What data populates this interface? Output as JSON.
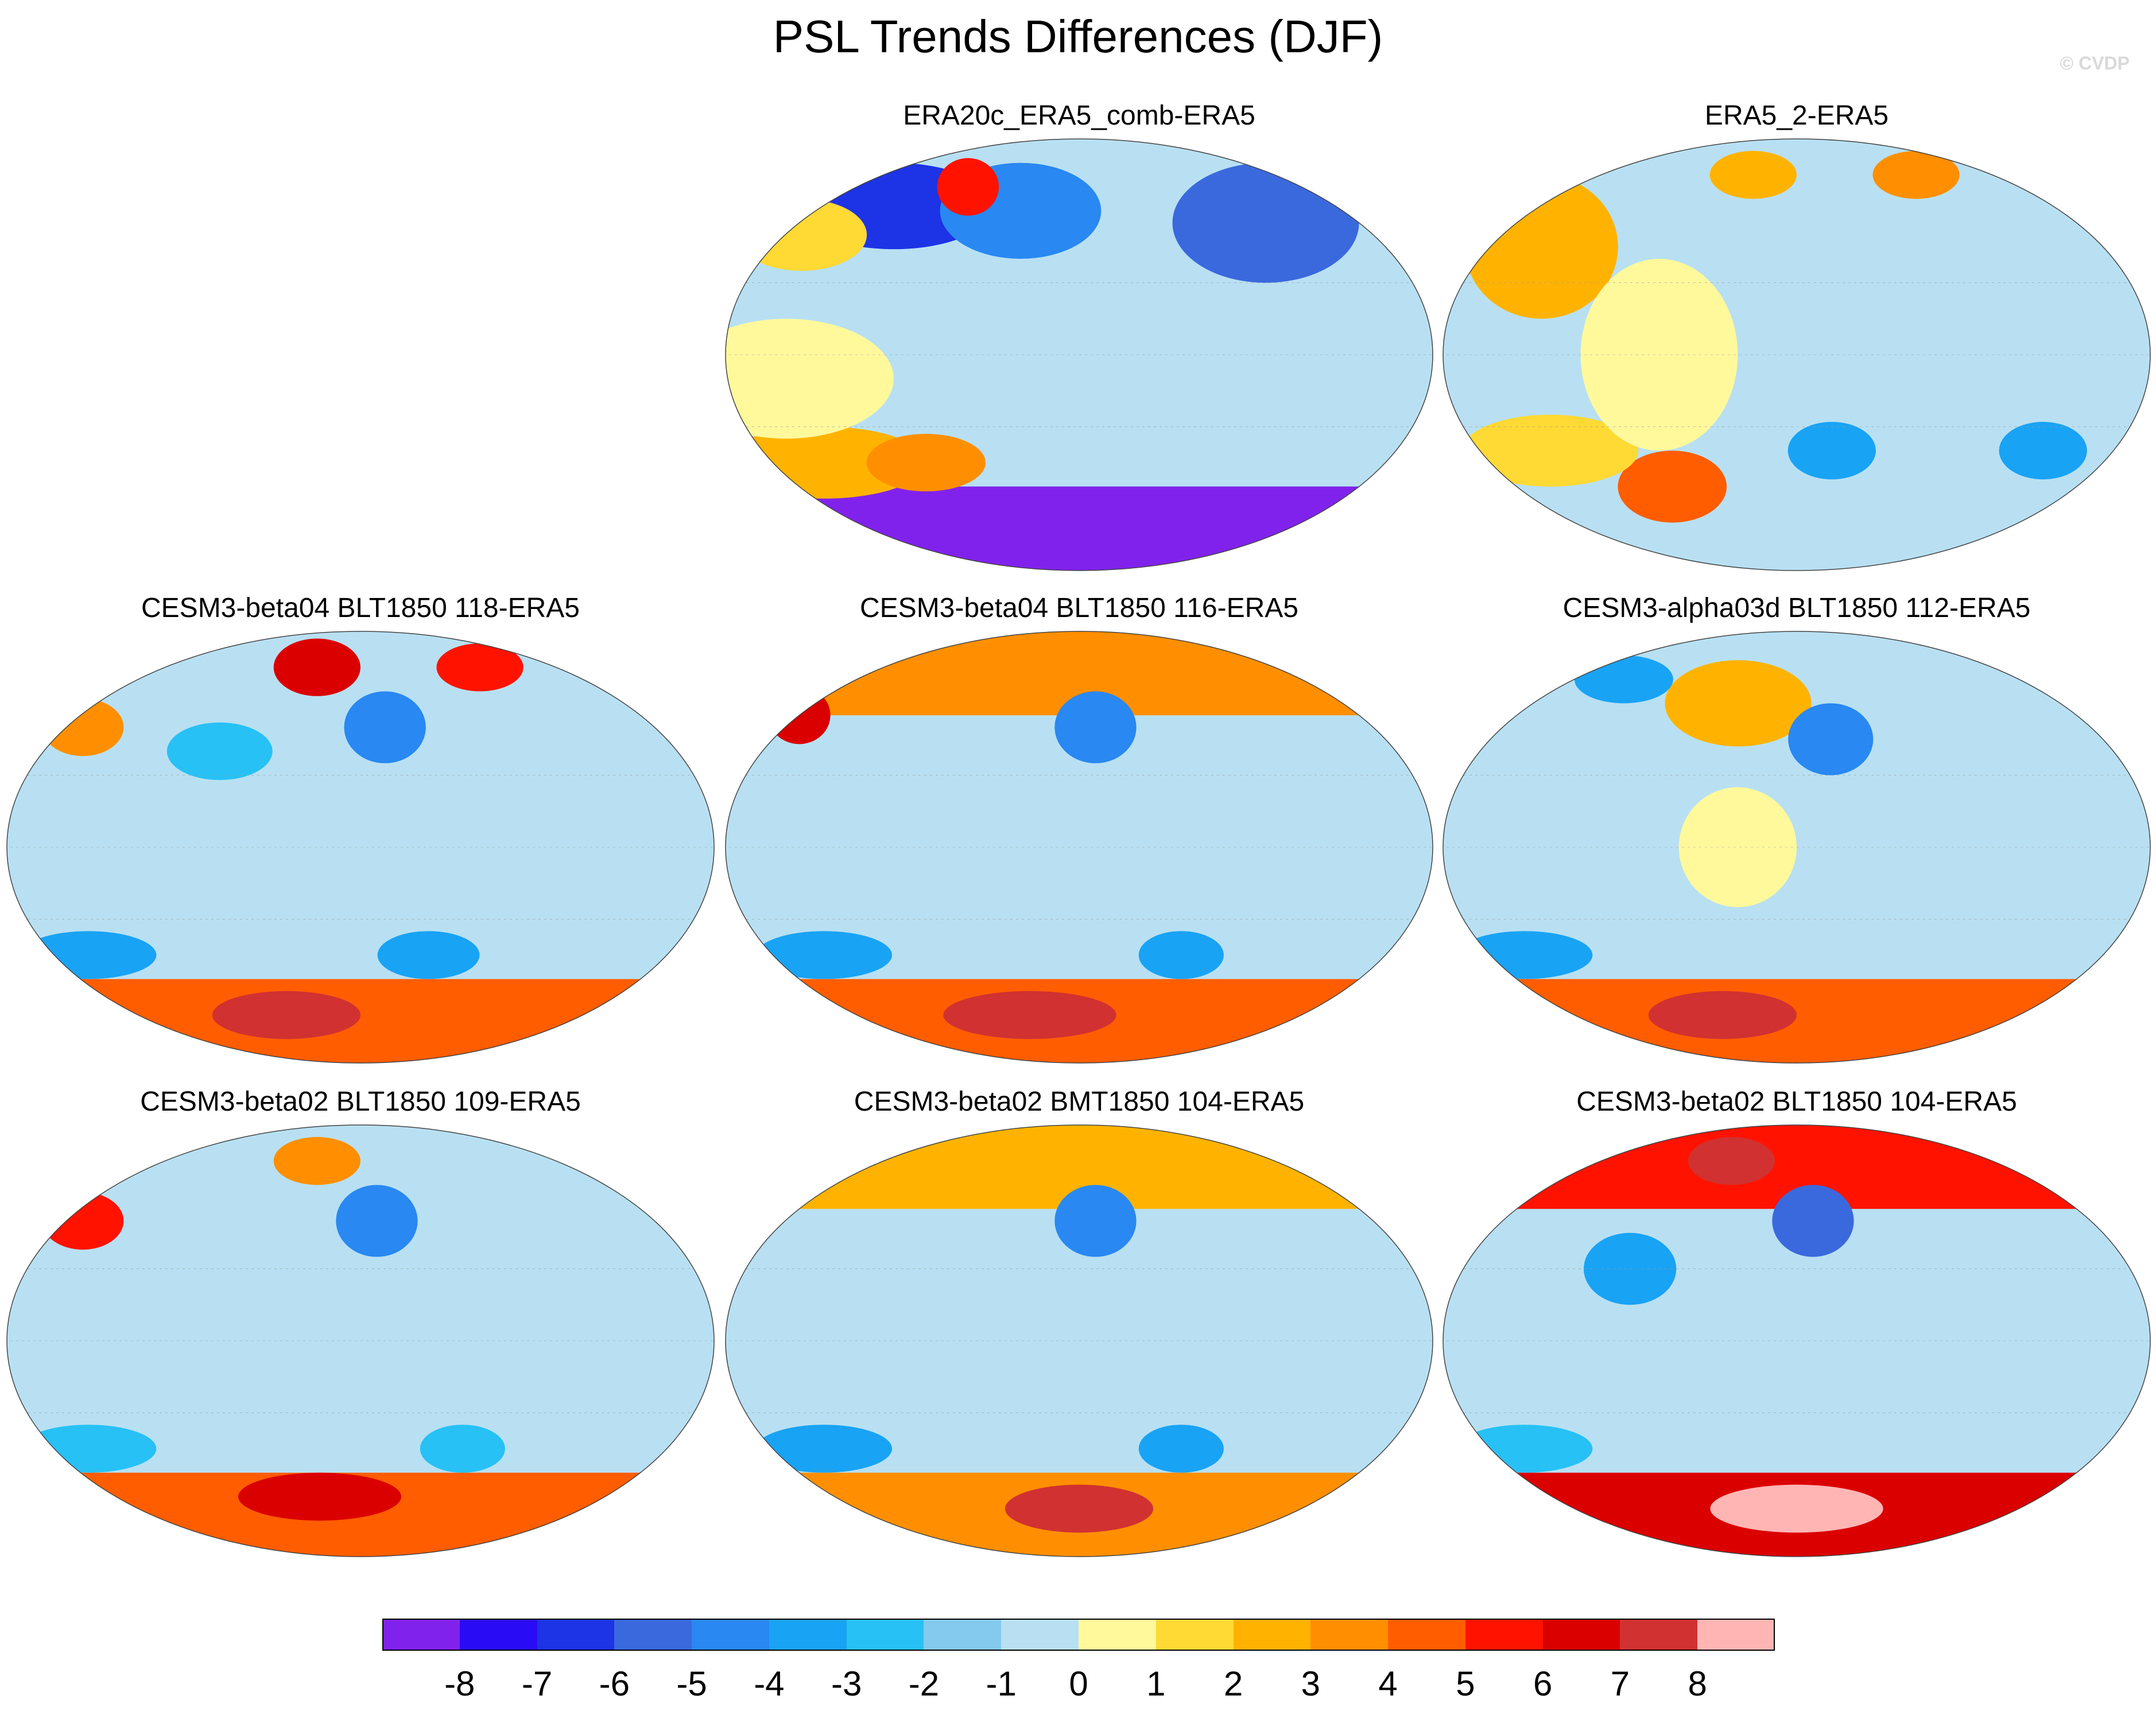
{
  "title": "PSL Trends Differences (DJF)",
  "watermark": "© CVDP",
  "colors": {
    "bins": [
      "#8122ec",
      "#2a0bf5",
      "#1d33e6",
      "#3a69de",
      "#2988f1",
      "#19a3f4",
      "#27c1f5",
      "#84c9ee",
      "#b8e0f2",
      "#fff99c",
      "#ffd934",
      "#ffb300",
      "#ff8f00",
      "#ff5d00",
      "#ff1300",
      "#db0000",
      "#d13131",
      "#ffb5b4"
    ]
  },
  "chart_data": [
    {
      "type": "contour-map",
      "projection": "Robinson",
      "title": "ERA20c_ERA5_comb-ERA5",
      "features": [
        {
          "kind": "lon0",
          "value": -0.5
        },
        {
          "kind": "band",
          "south": true,
          "colorIndex": 1
        },
        {
          "kind": "band",
          "south": true,
          "colorIndex": 0
        },
        {
          "kind": "blob",
          "lon": -130,
          "lat": 62,
          "rlon": 70,
          "rlat": 18,
          "colorIndex": 2
        },
        {
          "kind": "blob",
          "lon": 120,
          "lat": 55,
          "rlon": 60,
          "rlat": 25,
          "colorIndex": 3
        },
        {
          "kind": "blob",
          "lon": -40,
          "lat": 60,
          "rlon": 55,
          "rlat": 20,
          "colorIndex": 4
        },
        {
          "kind": "blob",
          "lon": -170,
          "lat": 50,
          "rlon": 40,
          "rlat": 15,
          "colorIndex": 10
        },
        {
          "kind": "blob",
          "lon": -90,
          "lat": 70,
          "rlon": 25,
          "rlat": 12,
          "colorIndex": 14
        },
        {
          "kind": "blob",
          "lon": -150,
          "lat": -45,
          "rlon": 60,
          "rlat": 15,
          "colorIndex": 11
        },
        {
          "kind": "blob",
          "lon": -90,
          "lat": -45,
          "rlon": 35,
          "rlat": 12,
          "colorIndex": 12
        },
        {
          "kind": "blob",
          "lon": -150,
          "lat": -10,
          "rlon": 55,
          "rlat": 25,
          "colorIndex": 9
        }
      ]
    },
    {
      "type": "contour-map",
      "projection": "Robinson",
      "title": "ERA5_2-ERA5",
      "features": [
        {
          "kind": "blob",
          "lon": -150,
          "lat": 45,
          "rlon": 30,
          "rlat": 20,
          "colorIndex": 14
        },
        {
          "kind": "blob",
          "lon": -150,
          "lat": 45,
          "rlon": 45,
          "rlat": 30,
          "colorIndex": 11
        },
        {
          "kind": "blob",
          "lon": 110,
          "lat": 75,
          "rlon": 40,
          "rlat": 10,
          "colorIndex": 12
        },
        {
          "kind": "blob",
          "lon": -40,
          "lat": 75,
          "rlon": 40,
          "rlat": 10,
          "colorIndex": 11
        },
        {
          "kind": "blob",
          "lon": -80,
          "lat": -55,
          "rlon": 35,
          "rlat": 15,
          "colorIndex": 13
        },
        {
          "kind": "blob",
          "lon": -140,
          "lat": -40,
          "rlon": 50,
          "rlat": 15,
          "colorIndex": 10
        },
        {
          "kind": "blob",
          "lon": -70,
          "lat": 0,
          "rlon": 40,
          "rlat": 40,
          "colorIndex": 9
        },
        {
          "kind": "blob",
          "lon": 140,
          "lat": -40,
          "rlon": 25,
          "rlat": 12,
          "colorIndex": 5
        },
        {
          "kind": "blob",
          "lon": 20,
          "lat": -40,
          "rlon": 25,
          "rlat": 12,
          "colorIndex": 5
        }
      ]
    },
    {
      "type": "contour-map",
      "projection": "Robinson",
      "title": "CESM3-beta04 BLT1850 118-ERA5",
      "features": [
        {
          "kind": "band",
          "south": true,
          "colorIndex": 13
        },
        {
          "kind": "blob",
          "lon": -60,
          "lat": -70,
          "rlon": 60,
          "rlat": 10,
          "colorIndex": 16
        },
        {
          "kind": "blob",
          "lon": -40,
          "lat": 75,
          "rlon": 40,
          "rlat": 12,
          "colorIndex": 15
        },
        {
          "kind": "blob",
          "lon": 110,
          "lat": 75,
          "rlon": 40,
          "rlat": 10,
          "colorIndex": 14
        },
        {
          "kind": "blob",
          "lon": -170,
          "lat": 50,
          "rlon": 25,
          "rlat": 12,
          "colorIndex": 12
        },
        {
          "kind": "blob",
          "lon": 15,
          "lat": 50,
          "rlon": 25,
          "rlat": 15,
          "colorIndex": 4
        },
        {
          "kind": "blob",
          "lon": -80,
          "lat": 40,
          "rlon": 30,
          "rlat": 12,
          "colorIndex": 6
        },
        {
          "kind": "blob",
          "lon": -160,
          "lat": -45,
          "rlon": 40,
          "rlat": 10,
          "colorIndex": 5
        },
        {
          "kind": "blob",
          "lon": 40,
          "lat": -45,
          "rlon": 30,
          "rlat": 10,
          "colorIndex": 5
        }
      ]
    },
    {
      "type": "contour-map",
      "projection": "Robinson",
      "title": "CESM3-beta04 BLT1850 116-ERA5",
      "features": [
        {
          "kind": "band",
          "south": true,
          "colorIndex": 13
        },
        {
          "kind": "blob",
          "lon": -40,
          "lat": -70,
          "rlon": 70,
          "rlat": 10,
          "colorIndex": 16
        },
        {
          "kind": "band",
          "north": true,
          "colorIndex": 12
        },
        {
          "kind": "blob",
          "lon": -180,
          "lat": 55,
          "rlon": 20,
          "rlat": 12,
          "colorIndex": 15
        },
        {
          "kind": "blob",
          "lon": 10,
          "lat": 50,
          "rlon": 25,
          "rlat": 15,
          "colorIndex": 4
        },
        {
          "kind": "blob",
          "lon": -150,
          "lat": -45,
          "rlon": 40,
          "rlat": 10,
          "colorIndex": 5
        },
        {
          "kind": "blob",
          "lon": 60,
          "lat": -45,
          "rlon": 25,
          "rlat": 10,
          "colorIndex": 5
        }
      ]
    },
    {
      "type": "contour-map",
      "projection": "Robinson",
      "title": "CESM3-alpha03d BLT1850 112-ERA5",
      "features": [
        {
          "kind": "band",
          "south": true,
          "colorIndex": 13
        },
        {
          "kind": "blob",
          "lon": -60,
          "lat": -70,
          "rlon": 60,
          "rlat": 10,
          "colorIndex": 16
        },
        {
          "kind": "blob",
          "lon": -40,
          "lat": 60,
          "rlon": 50,
          "rlat": 18,
          "colorIndex": 11
        },
        {
          "kind": "blob",
          "lon": -140,
          "lat": 70,
          "rlon": 40,
          "rlat": 10,
          "colorIndex": 5
        },
        {
          "kind": "blob",
          "lon": 20,
          "lat": 45,
          "rlon": 25,
          "rlat": 15,
          "colorIndex": 4
        },
        {
          "kind": "blob",
          "lon": -160,
          "lat": -45,
          "rlon": 40,
          "rlat": 10,
          "colorIndex": 5
        },
        {
          "kind": "blob",
          "lon": -30,
          "lat": 0,
          "rlon": 30,
          "rlat": 25,
          "colorIndex": 9
        }
      ]
    },
    {
      "type": "contour-map",
      "projection": "Robinson",
      "title": "CESM3-beta02 BLT1850 109-ERA5",
      "features": [
        {
          "kind": "band",
          "south": true,
          "colorIndex": 13
        },
        {
          "kind": "blob",
          "lon": -30,
          "lat": -65,
          "rlon": 60,
          "rlat": 10,
          "colorIndex": 15
        },
        {
          "kind": "blob",
          "lon": -170,
          "lat": 50,
          "rlon": 25,
          "rlat": 12,
          "colorIndex": 14
        },
        {
          "kind": "blob",
          "lon": -40,
          "lat": 75,
          "rlon": 40,
          "rlat": 10,
          "colorIndex": 12
        },
        {
          "kind": "blob",
          "lon": 10,
          "lat": 50,
          "rlon": 25,
          "rlat": 15,
          "colorIndex": 4
        },
        {
          "kind": "blob",
          "lon": -160,
          "lat": -45,
          "rlon": 40,
          "rlat": 10,
          "colorIndex": 6
        },
        {
          "kind": "blob",
          "lon": 60,
          "lat": -45,
          "rlon": 25,
          "rlat": 10,
          "colorIndex": 6
        }
      ]
    },
    {
      "type": "contour-map",
      "projection": "Robinson",
      "title": "CESM3-beta02 BMT1850 104-ERA5",
      "features": [
        {
          "kind": "band",
          "south": true,
          "colorIndex": 12
        },
        {
          "kind": "blob",
          "lon": 0,
          "lat": -70,
          "rlon": 60,
          "rlat": 10,
          "colorIndex": 16
        },
        {
          "kind": "band",
          "north": true,
          "colorIndex": 11
        },
        {
          "kind": "blob",
          "lon": 10,
          "lat": 50,
          "rlon": 25,
          "rlat": 15,
          "colorIndex": 4
        },
        {
          "kind": "blob",
          "lon": -150,
          "lat": -45,
          "rlon": 40,
          "rlat": 10,
          "colorIndex": 5
        },
        {
          "kind": "blob",
          "lon": 60,
          "lat": -45,
          "rlon": 25,
          "rlat": 10,
          "colorIndex": 5
        }
      ]
    },
    {
      "type": "contour-map",
      "projection": "Robinson",
      "title": "CESM3-beta02 BLT1850 104-ERA5",
      "features": [
        {
          "kind": "band",
          "south": true,
          "colorIndex": 15
        },
        {
          "kind": "blob",
          "lon": 0,
          "lat": -70,
          "rlon": 70,
          "rlat": 10,
          "colorIndex": 17
        },
        {
          "kind": "band",
          "north": true,
          "colorIndex": 14
        },
        {
          "kind": "blob",
          "lon": -60,
          "lat": 75,
          "rlon": 40,
          "rlat": 10,
          "colorIndex": 16
        },
        {
          "kind": "blob",
          "lon": 10,
          "lat": 50,
          "rlon": 25,
          "rlat": 15,
          "colorIndex": 3
        },
        {
          "kind": "blob",
          "lon": -160,
          "lat": -45,
          "rlon": 40,
          "rlat": 10,
          "colorIndex": 6
        },
        {
          "kind": "blob",
          "lon": -90,
          "lat": 30,
          "rlon": 25,
          "rlat": 15,
          "colorIndex": 5
        }
      ]
    }
  ],
  "colorbar": {
    "labels": [
      "-8",
      "-7",
      "-6",
      "-5",
      "-4",
      "-3",
      "-2",
      "-1",
      "0",
      "1",
      "2",
      "3",
      "4",
      "5",
      "6",
      "7",
      "8"
    ],
    "bins": 18
  }
}
